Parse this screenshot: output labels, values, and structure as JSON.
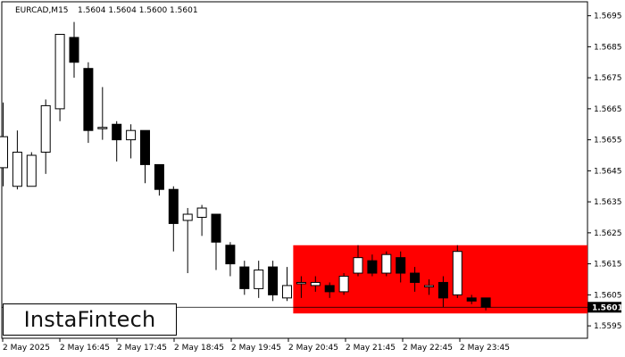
{
  "header": {
    "symbol_label": "EURCAD,M15",
    "ohlc_label": "1.5604 1.5604 1.5600 1.5601"
  },
  "logo": {
    "text": "InstaFintech"
  },
  "colors": {
    "zone": "#ff0000",
    "bull_body": "#ffffff",
    "bear_body": "#000000",
    "price_tag": "#000000"
  },
  "chart_data": {
    "type": "candlestick",
    "symbol": "EURCAD",
    "timeframe": "M15",
    "ylim": [
      1.5591,
      1.56995
    ],
    "y_ticks": [
      "1.5695",
      "1.5685",
      "1.5675",
      "1.5665",
      "1.5655",
      "1.5645",
      "1.5635",
      "1.5625",
      "1.5615",
      "1.5605",
      "1.5595"
    ],
    "x_ticks": [
      "2 May 2025",
      "2 May 16:45",
      "2 May 17:45",
      "2 May 18:45",
      "2 May 19:45",
      "2 May 20:45",
      "2 May 21:45",
      "2 May 22:45",
      "2 May 23:45"
    ],
    "current_price": "1.5601",
    "zone": {
      "top": 1.5621,
      "bottom": 1.5599,
      "from_candle": 21,
      "color": "red"
    },
    "candles": [
      {
        "o": 1.5646,
        "h": 1.5667,
        "l": 1.564,
        "c": 1.5656
      },
      {
        "o": 1.564,
        "h": 1.5658,
        "l": 1.5639,
        "c": 1.5651
      },
      {
        "o": 1.564,
        "h": 1.5651,
        "l": 1.564,
        "c": 1.565
      },
      {
        "o": 1.5651,
        "h": 1.5668,
        "l": 1.5644,
        "c": 1.5666
      },
      {
        "o": 1.5665,
        "h": 1.5689,
        "l": 1.5661,
        "c": 1.5689
      },
      {
        "o": 1.5688,
        "h": 1.5693,
        "l": 1.5675,
        "c": 1.568
      },
      {
        "o": 1.5678,
        "h": 1.568,
        "l": 1.5654,
        "c": 1.5658
      },
      {
        "o": 1.5659,
        "h": 1.5672,
        "l": 1.5655,
        "c": 1.5659
      },
      {
        "o": 1.566,
        "h": 1.5661,
        "l": 1.5648,
        "c": 1.5655
      },
      {
        "o": 1.5655,
        "h": 1.566,
        "l": 1.5649,
        "c": 1.5658
      },
      {
        "o": 1.5658,
        "h": 1.5658,
        "l": 1.5641,
        "c": 1.5647
      },
      {
        "o": 1.5647,
        "h": 1.5647,
        "l": 1.5637,
        "c": 1.5639
      },
      {
        "o": 1.5639,
        "h": 1.564,
        "l": 1.5619,
        "c": 1.5628
      },
      {
        "o": 1.5629,
        "h": 1.5633,
        "l": 1.5612,
        "c": 1.5631
      },
      {
        "o": 1.563,
        "h": 1.5634,
        "l": 1.5624,
        "c": 1.5633
      },
      {
        "o": 1.5631,
        "h": 1.5631,
        "l": 1.5613,
        "c": 1.5622
      },
      {
        "o": 1.5621,
        "h": 1.5622,
        "l": 1.5611,
        "c": 1.5615
      },
      {
        "o": 1.5614,
        "h": 1.5616,
        "l": 1.5605,
        "c": 1.5607
      },
      {
        "o": 1.5607,
        "h": 1.5616,
        "l": 1.5604,
        "c": 1.5613
      },
      {
        "o": 1.5614,
        "h": 1.5616,
        "l": 1.5603,
        "c": 1.5605
      },
      {
        "o": 1.5604,
        "h": 1.5614,
        "l": 1.5603,
        "c": 1.5608
      },
      {
        "o": 1.5609,
        "h": 1.5611,
        "l": 1.5604,
        "c": 1.5609
      },
      {
        "o": 1.5608,
        "h": 1.5611,
        "l": 1.5606,
        "c": 1.5609
      },
      {
        "o": 1.5608,
        "h": 1.5609,
        "l": 1.5604,
        "c": 1.5606
      },
      {
        "o": 1.5606,
        "h": 1.5612,
        "l": 1.5605,
        "c": 1.5611
      },
      {
        "o": 1.5612,
        "h": 1.5621,
        "l": 1.5611,
        "c": 1.5617
      },
      {
        "o": 1.5616,
        "h": 1.5618,
        "l": 1.5611,
        "c": 1.5612
      },
      {
        "o": 1.5612,
        "h": 1.5619,
        "l": 1.5611,
        "c": 1.5618
      },
      {
        "o": 1.5617,
        "h": 1.5619,
        "l": 1.5609,
        "c": 1.5612
      },
      {
        "o": 1.5612,
        "h": 1.5614,
        "l": 1.5606,
        "c": 1.5609
      },
      {
        "o": 1.5608,
        "h": 1.561,
        "l": 1.5605,
        "c": 1.5608
      },
      {
        "o": 1.5609,
        "h": 1.5611,
        "l": 1.5601,
        "c": 1.5604
      },
      {
        "o": 1.5605,
        "h": 1.5621,
        "l": 1.5604,
        "c": 1.5619
      },
      {
        "o": 1.5604,
        "h": 1.5605,
        "l": 1.5602,
        "c": 1.5603
      },
      {
        "o": 1.5604,
        "h": 1.5604,
        "l": 1.56,
        "c": 1.5601
      }
    ]
  }
}
